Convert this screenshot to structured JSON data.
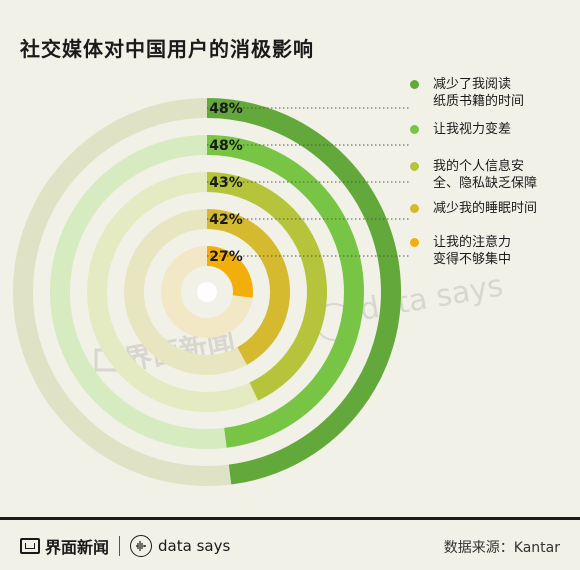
{
  "title": "社交媒体对中国用户的消极影响",
  "chart_data": {
    "type": "radial-bar",
    "title": "社交媒体对中国用户的消极影响",
    "series": [
      {
        "name": "减少了我阅读\n纸质书籍的时间",
        "value": 48,
        "label": "48%",
        "color": "#63a83a",
        "track": "#dfe2c4"
      },
      {
        "name": "让我视力变差",
        "value": 48,
        "label": "48%",
        "color": "#78c545",
        "track": "#d7ebc1"
      },
      {
        "name": "我的个人信息安\n全、隐私缺乏保障",
        "value": 43,
        "label": "43%",
        "color": "#b5c43a",
        "track": "#e4ebc2"
      },
      {
        "name": "减少我的睡眠时间",
        "value": 42,
        "label": "42%",
        "color": "#d5b92e",
        "track": "#e8e6c0"
      },
      {
        "name": "让我的注意力\n变得不够集中",
        "value": 27,
        "label": "27%",
        "color": "#f2ae0a",
        "track": "#f2e8c6"
      }
    ]
  },
  "watermarks": {
    "left": "界面新闻",
    "right": "data says"
  },
  "footer": {
    "brand": "界面新闻",
    "partner": "data says",
    "source": "数据来源：Kantar"
  },
  "icons": {
    "brand": "jiemian-logo-icon",
    "partner": "data-says-logo-icon"
  }
}
